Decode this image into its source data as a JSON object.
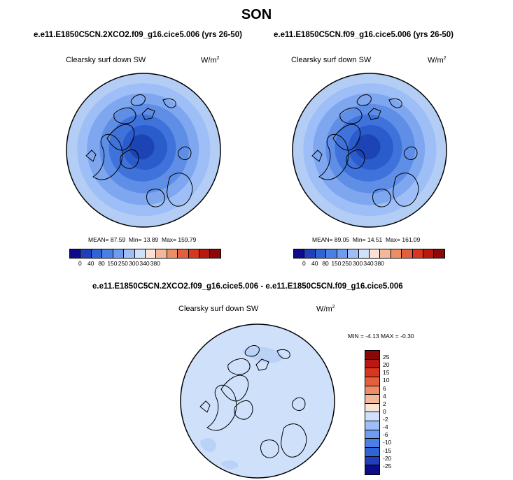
{
  "title": "SON",
  "panels": [
    {
      "case": "e.e11.E1850C5CN.2XCO2.f09_g16.cice5.006 (yrs 26-50)",
      "variable": "Clearsky surf down SW",
      "units": "W/m",
      "units_exp": "2",
      "stats": {
        "mean_label": "MEAN=",
        "mean": "87.59",
        "min_label": "Min=",
        "min": "13.89",
        "max_label": "Max=",
        "max": "159.79"
      }
    },
    {
      "case": "e.e11.E1850C5CN.f09_g16.cice5.006 (yrs 26-50)",
      "variable": "Clearsky surf down SW",
      "units": "W/m",
      "units_exp": "2",
      "stats": {
        "mean_label": "MEAN=",
        "mean": "89.05",
        "min_label": "Min=",
        "min": "14.51",
        "max_label": "Max=",
        "max": "161.09"
      }
    }
  ],
  "diff_panel": {
    "case": "e.e11.E1850C5CN.2XCO2.f09_g16.cice5.006 - e.e11.E1850C5CN.f09_g16.cice5.006",
    "variable": "Clearsky surf down SW",
    "units": "W/m",
    "units_exp": "2",
    "stats": {
      "min_label": "MIN =",
      "min": "-4.13",
      "max_label": "MAX =",
      "max": "-0.30"
    }
  },
  "colorbar_abs": {
    "colors": [
      "#0c0c8a",
      "#1f3fbf",
      "#2f63d8",
      "#4a7fe6",
      "#6f9cf0",
      "#9dbef6",
      "#cfe0fb",
      "#fbe3d3",
      "#f5b79a",
      "#ee8c68",
      "#e65f3c",
      "#d8361f",
      "#b81811",
      "#8c0707"
    ],
    "tick_labels": [
      "0",
      "40",
      "80",
      "150",
      "250",
      "300",
      "340",
      "380"
    ]
  },
  "colorbar_diff": {
    "colors": [
      "#8c0707",
      "#b81811",
      "#d8361f",
      "#e65f3c",
      "#ee8c68",
      "#f5b79a",
      "#fbe3d3",
      "#cfe0fb",
      "#9dbef6",
      "#6f9cf0",
      "#4a7fe6",
      "#2f63d8",
      "#1f3fbf",
      "#0c0c8a"
    ],
    "tick_labels": [
      "25",
      "20",
      "15",
      "10",
      "6",
      "4",
      "2",
      "0",
      "-2",
      "-4",
      "-6",
      "-10",
      "-15",
      "-20",
      "-25"
    ]
  },
  "map_colors": {
    "abs_rings": [
      "#b3cdf4",
      "#9dbef6",
      "#7ea7f0",
      "#5f8ee6",
      "#3f73db",
      "#2a5ccc",
      "#1d44b4"
    ],
    "diff_fill": "#cfe0fb",
    "diff_patch": "#b9d2f6",
    "coast": "#000000"
  }
}
